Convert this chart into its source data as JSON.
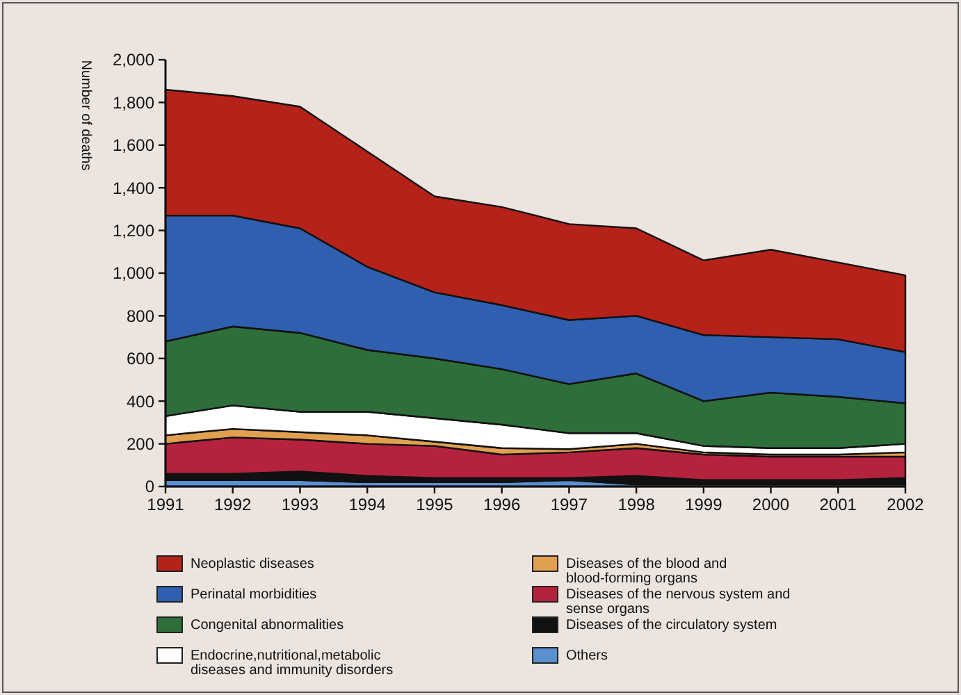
{
  "chart_data": {
    "type": "area",
    "stacked": true,
    "ylabel": "Number of deaths",
    "x": [
      1991,
      1992,
      1993,
      1994,
      1995,
      1996,
      1997,
      1998,
      1999,
      2000,
      2001,
      2002
    ],
    "xlim": [
      1991,
      2002
    ],
    "xticks": [
      1991,
      1992,
      1993,
      1994,
      1995,
      1996,
      1997,
      1998,
      1999,
      2000,
      2001,
      2002
    ],
    "ylim": [
      0,
      2000
    ],
    "yticks": [
      {
        "value": 0,
        "label": "0"
      },
      {
        "value": 200,
        "label": "200"
      },
      {
        "value": 400,
        "label": "400"
      },
      {
        "value": 600,
        "label": "600"
      },
      {
        "value": 800,
        "label": "800"
      },
      {
        "value": 1000,
        "label": "1,000"
      },
      {
        "value": 1200,
        "label": "1,200"
      },
      {
        "value": 1400,
        "label": "1,400"
      },
      {
        "value": 1600,
        "label": "1,600"
      },
      {
        "value": 1800,
        "label": "1,800"
      },
      {
        "value": 2000,
        "label": "2,000"
      }
    ],
    "grid": false,
    "legend": "bottom",
    "series": [
      {
        "name": "Others",
        "color": "#5a8fd0",
        "values": [
          30,
          30,
          30,
          20,
          20,
          20,
          30,
          10,
          10,
          10,
          10,
          10
        ]
      },
      {
        "name": "Diseases of the circulatory system",
        "color": "#111111",
        "values": [
          30,
          30,
          40,
          30,
          20,
          20,
          10,
          40,
          20,
          20,
          20,
          30
        ]
      },
      {
        "name": "Diseases of the nervous system and sense organs",
        "color": "#b5223e",
        "values": [
          140,
          170,
          150,
          150,
          150,
          110,
          120,
          130,
          120,
          110,
          110,
          100
        ]
      },
      {
        "name": "Diseases of the blood and blood-forming organs",
        "color": "#e0a050",
        "values": [
          40,
          40,
          35,
          40,
          20,
          30,
          15,
          20,
          10,
          10,
          10,
          20
        ]
      },
      {
        "name": "Endocrine,nutritional,metabolic diseases and immunity disorders",
        "color": "#ffffff",
        "values": [
          90,
          110,
          95,
          110,
          110,
          110,
          75,
          50,
          30,
          30,
          30,
          40
        ]
      },
      {
        "name": "Congenital abnormalities",
        "color": "#2e6e3a",
        "values": [
          350,
          370,
          370,
          290,
          280,
          260,
          230,
          280,
          210,
          260,
          240,
          190
        ]
      },
      {
        "name": "Perinatal morbidities",
        "color": "#2f5fae",
        "values": [
          590,
          520,
          490,
          390,
          310,
          300,
          300,
          270,
          310,
          260,
          270,
          240
        ]
      },
      {
        "name": "Neoplastic diseases",
        "color": "#b5221a",
        "values": [
          590,
          560,
          570,
          540,
          450,
          460,
          450,
          410,
          350,
          410,
          360,
          360
        ]
      }
    ]
  }
}
